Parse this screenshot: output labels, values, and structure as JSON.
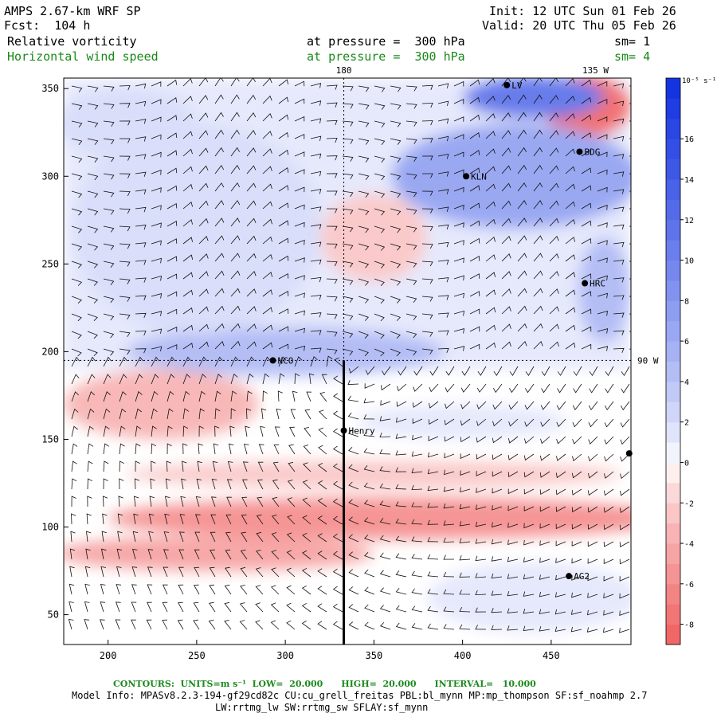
{
  "header": {
    "model": "AMPS 2.67-km WRF SP",
    "fcst": "Fcst:  104 h",
    "init": "Init: 12 UTC Sun 01 Feb 26",
    "valid": "Valid: 20 UTC Thu 05 Feb 26",
    "field1": "Relative vorticity",
    "field1_level": "at pressure =  300 hPa",
    "field1_sm": "sm= 1",
    "field2": "Horizontal wind speed",
    "field2_level": "at pressure =  300 hPa",
    "field2_sm": "sm= 4"
  },
  "chart_data": {
    "type": "heatmap",
    "xlim": [
      175,
      495
    ],
    "ylim": [
      33,
      356
    ],
    "x_ticks": [
      200,
      250,
      300,
      350,
      400,
      450
    ],
    "y_ticks": [
      50,
      100,
      150,
      200,
      250,
      300,
      350
    ],
    "meridian_labels": [
      {
        "text": "180",
        "x": 333,
        "y": 356
      },
      {
        "text": "135 W",
        "x": 475,
        "y": 356
      },
      {
        "text": "90 W",
        "x": 495,
        "y": 195
      }
    ],
    "stations": [
      {
        "name": "LV",
        "x": 425,
        "y": 352
      },
      {
        "name": "BDG",
        "x": 466,
        "y": 314
      },
      {
        "name": "KLN",
        "x": 402,
        "y": 300
      },
      {
        "name": "HRC",
        "x": 469,
        "y": 239
      },
      {
        "name": "NCO",
        "x": 293,
        "y": 195
      },
      {
        "name": "Henry",
        "x": 333,
        "y": 155
      },
      {
        "name": "AG2",
        "x": 460,
        "y": 72
      },
      {
        "name": "",
        "x": 494,
        "y": 142
      }
    ],
    "pole_line": {
      "x": 333,
      "y_from": 33,
      "y_to": 195
    },
    "colorbar": {
      "units": "10⁻⁵ s⁻¹",
      "ticks": [
        -8,
        -6,
        -4,
        -2,
        0,
        2,
        4,
        6,
        8,
        10,
        12,
        14,
        16
      ],
      "range": [
        -9,
        19
      ],
      "neg_color": "#f06060",
      "pos_color": "#1030e0"
    },
    "vorticity_features": [
      {
        "x": 360,
        "y": 105,
        "rx": 160,
        "ry": 12,
        "value": -6
      },
      {
        "x": 260,
        "y": 85,
        "rx": 90,
        "ry": 10,
        "value": -5
      },
      {
        "x": 350,
        "y": 130,
        "rx": 140,
        "ry": 8,
        "value": -3
      },
      {
        "x": 230,
        "y": 170,
        "rx": 55,
        "ry": 20,
        "value": -4
      },
      {
        "x": 470,
        "y": 340,
        "rx": 25,
        "ry": 18,
        "value": -8
      },
      {
        "x": 350,
        "y": 265,
        "rx": 30,
        "ry": 25,
        "value": -3
      },
      {
        "x": 270,
        "y": 275,
        "rx": 12,
        "ry": 50,
        "value": -3
      },
      {
        "x": 300,
        "y": 200,
        "rx": 90,
        "ry": 14,
        "value": 6
      },
      {
        "x": 250,
        "y": 270,
        "rx": 70,
        "ry": 60,
        "value": 3
      },
      {
        "x": 430,
        "y": 300,
        "rx": 70,
        "ry": 30,
        "value": 8
      },
      {
        "x": 440,
        "y": 345,
        "rx": 40,
        "ry": 12,
        "value": 12
      },
      {
        "x": 480,
        "y": 235,
        "rx": 15,
        "ry": 30,
        "value": 6
      },
      {
        "x": 210,
        "y": 330,
        "rx": 40,
        "ry": 20,
        "value": 3
      },
      {
        "x": 400,
        "y": 160,
        "rx": 60,
        "ry": 10,
        "value": 2
      },
      {
        "x": 440,
        "y": 60,
        "rx": 60,
        "ry": 20,
        "value": 2
      }
    ]
  },
  "footer": {
    "contours": "CONTOURS:  UNITS=m s⁻¹  LOW=  20.000      HIGH=  20.000      INTERVAL=   10.000",
    "model_info": "Model Info: MPASv8.2.3-194-gf29cd82c CU:cu_grell_freitas PBL:bl_mynn MP:mp_thompson SF:sf_noahmp 2.7",
    "model_info2": "LW:rrtmg_lw SW:rrtmg_sw SFLAY:sf_mynn"
  }
}
